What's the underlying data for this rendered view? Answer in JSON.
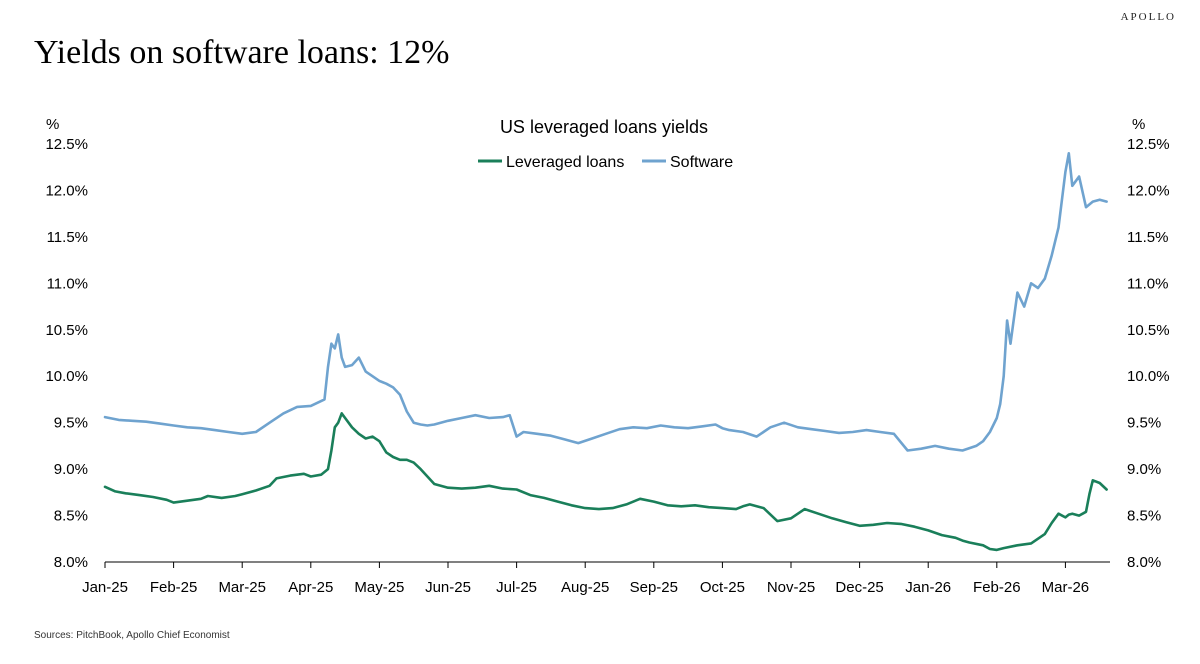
{
  "header": {
    "brand": "APOLLO",
    "title": "Yields on software loans: 12%"
  },
  "footer": {
    "source": "Sources: PitchBook, Apollo Chief Economist"
  },
  "colors": {
    "leveraged": "#1a7f5a",
    "software": "#6fa3cf",
    "axis": "#000000"
  },
  "chart_data": {
    "type": "line",
    "title": "US leveraged loans yields",
    "ylabel_left": "%",
    "ylabel_right": "%",
    "ylim": [
      8.0,
      12.5
    ],
    "yticks": [
      8.0,
      8.5,
      9.0,
      9.5,
      10.0,
      10.5,
      11.0,
      11.5,
      12.0,
      12.5
    ],
    "ytick_labels": [
      "8.0%",
      "8.5%",
      "9.0%",
      "9.5%",
      "10.0%",
      "10.5%",
      "11.0%",
      "11.5%",
      "12.0%",
      "12.5%"
    ],
    "xlim": [
      0,
      14.65
    ],
    "x_ticks": [
      0,
      1,
      2,
      3,
      4,
      5,
      6,
      7,
      8,
      9,
      10,
      11,
      12,
      13,
      14
    ],
    "x_tick_labels": [
      "Jan-25",
      "Feb-25",
      "Mar-25",
      "Apr-25",
      "May-25",
      "Jun-25",
      "Jul-25",
      "Aug-25",
      "Sep-25",
      "Oct-25",
      "Nov-25",
      "Dec-25",
      "Jan-26",
      "Feb-26",
      "Mar-26"
    ],
    "legend": [
      "Leveraged loans",
      "Software"
    ],
    "legend_position": "top-center",
    "series": [
      {
        "name": "Leveraged loans",
        "color": "#1a7f5a",
        "x": [
          0,
          0.15,
          0.3,
          0.5,
          0.7,
          0.9,
          1.0,
          1.2,
          1.4,
          1.5,
          1.7,
          1.9,
          2.0,
          2.2,
          2.4,
          2.5,
          2.7,
          2.9,
          3.0,
          3.15,
          3.25,
          3.3,
          3.35,
          3.4,
          3.45,
          3.5,
          3.6,
          3.7,
          3.8,
          3.9,
          4.0,
          4.1,
          4.2,
          4.3,
          4.4,
          4.5,
          4.6,
          4.7,
          4.8,
          5.0,
          5.2,
          5.4,
          5.6,
          5.8,
          6.0,
          6.2,
          6.4,
          6.6,
          6.8,
          7.0,
          7.2,
          7.4,
          7.5,
          7.6,
          7.8,
          8.0,
          8.2,
          8.4,
          8.6,
          8.8,
          9.0,
          9.2,
          9.3,
          9.4,
          9.6,
          9.8,
          10.0,
          10.2,
          10.4,
          10.6,
          10.8,
          11.0,
          11.2,
          11.4,
          11.6,
          11.8,
          12.0,
          12.2,
          12.4,
          12.5,
          12.6,
          12.8,
          12.9,
          13.0,
          13.1,
          13.3,
          13.5,
          13.7,
          13.8,
          13.9,
          14.0,
          14.05,
          14.1,
          14.2,
          14.3,
          14.35,
          14.4,
          14.5,
          14.6
        ],
        "values": [
          8.81,
          8.76,
          8.74,
          8.72,
          8.7,
          8.67,
          8.64,
          8.66,
          8.68,
          8.71,
          8.69,
          8.71,
          8.73,
          8.77,
          8.82,
          8.9,
          8.93,
          8.95,
          8.92,
          8.94,
          9.0,
          9.2,
          9.45,
          9.5,
          9.6,
          9.55,
          9.45,
          9.38,
          9.33,
          9.35,
          9.3,
          9.18,
          9.13,
          9.1,
          9.1,
          9.07,
          9.0,
          8.92,
          8.84,
          8.8,
          8.79,
          8.8,
          8.82,
          8.79,
          8.78,
          8.72,
          8.69,
          8.65,
          8.61,
          8.58,
          8.57,
          8.58,
          8.6,
          8.62,
          8.68,
          8.65,
          8.61,
          8.6,
          8.61,
          8.59,
          8.58,
          8.57,
          8.6,
          8.62,
          8.58,
          8.44,
          8.47,
          8.57,
          8.52,
          8.47,
          8.43,
          8.39,
          8.4,
          8.42,
          8.41,
          8.38,
          8.34,
          8.29,
          8.26,
          8.23,
          8.21,
          8.18,
          8.14,
          8.13,
          8.15,
          8.18,
          8.2,
          8.3,
          8.42,
          8.52,
          8.48,
          8.51,
          8.52,
          8.5,
          8.54,
          8.73,
          8.88,
          8.85,
          8.78
        ],
        "values_note": "estimated from gridlines"
      },
      {
        "name": "Software",
        "color": "#6fa3cf",
        "x": [
          0,
          0.2,
          0.4,
          0.6,
          0.8,
          1.0,
          1.2,
          1.4,
          1.6,
          1.8,
          2.0,
          2.2,
          2.4,
          2.6,
          2.8,
          3.0,
          3.2,
          3.25,
          3.3,
          3.35,
          3.4,
          3.45,
          3.5,
          3.6,
          3.7,
          3.8,
          3.9,
          4.0,
          4.1,
          4.2,
          4.3,
          4.4,
          4.5,
          4.6,
          4.7,
          4.8,
          5.0,
          5.2,
          5.4,
          5.6,
          5.8,
          5.9,
          6.0,
          6.1,
          6.3,
          6.5,
          6.7,
          6.9,
          7.1,
          7.3,
          7.5,
          7.7,
          7.9,
          8.1,
          8.3,
          8.5,
          8.7,
          8.9,
          9.0,
          9.1,
          9.3,
          9.5,
          9.7,
          9.9,
          10.1,
          10.3,
          10.5,
          10.7,
          10.9,
          11.1,
          11.3,
          11.5,
          11.7,
          11.9,
          12.1,
          12.3,
          12.5,
          12.7,
          12.8,
          12.9,
          13.0,
          13.05,
          13.1,
          13.15,
          13.2,
          13.3,
          13.4,
          13.5,
          13.6,
          13.7,
          13.8,
          13.9,
          14.0,
          14.05,
          14.1,
          14.15,
          14.2,
          14.3,
          14.4,
          14.5,
          14.6
        ],
        "values": [
          9.56,
          9.53,
          9.52,
          9.51,
          9.49,
          9.47,
          9.45,
          9.44,
          9.42,
          9.4,
          9.38,
          9.4,
          9.5,
          9.6,
          9.67,
          9.68,
          9.75,
          10.1,
          10.35,
          10.3,
          10.45,
          10.2,
          10.1,
          10.12,
          10.2,
          10.05,
          10.0,
          9.95,
          9.92,
          9.88,
          9.8,
          9.62,
          9.5,
          9.48,
          9.47,
          9.48,
          9.52,
          9.55,
          9.58,
          9.55,
          9.56,
          9.58,
          9.35,
          9.4,
          9.38,
          9.36,
          9.32,
          9.28,
          9.33,
          9.38,
          9.43,
          9.45,
          9.44,
          9.47,
          9.45,
          9.44,
          9.46,
          9.48,
          9.44,
          9.42,
          9.4,
          9.35,
          9.45,
          9.5,
          9.45,
          9.43,
          9.41,
          9.39,
          9.4,
          9.42,
          9.4,
          9.38,
          9.2,
          9.22,
          9.25,
          9.22,
          9.2,
          9.25,
          9.3,
          9.4,
          9.55,
          9.7,
          10.0,
          10.6,
          10.35,
          10.9,
          10.75,
          11.0,
          10.95,
          11.05,
          11.3,
          11.6,
          12.2,
          12.4,
          12.05,
          12.1,
          12.15,
          11.82,
          11.88,
          11.9,
          11.88
        ],
        "values_note": "estimated from gridlines"
      }
    ]
  }
}
